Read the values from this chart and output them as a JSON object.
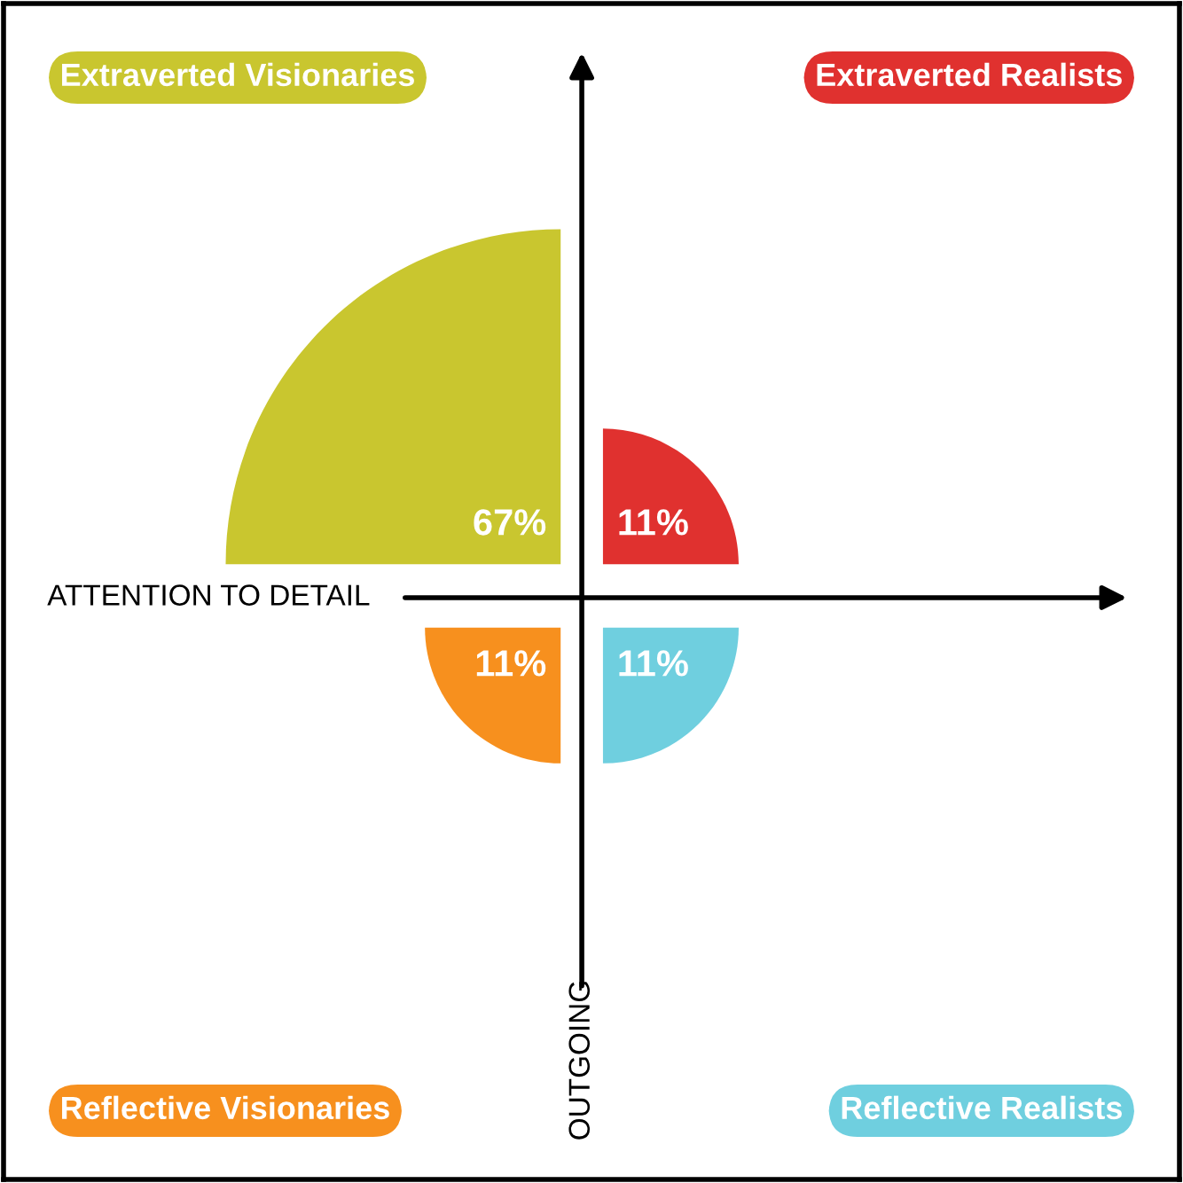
{
  "chart_data": {
    "type": "other",
    "xlabel": "ATTENTION TO DETAIL",
    "ylabel": "OUTGOING",
    "categories": [
      "Extraverted Visionaries",
      "Extraverted Realists",
      "Reflective Visionaries",
      "Reflective Realists"
    ],
    "values": [
      67,
      11,
      11,
      11
    ],
    "value_labels": [
      "67%",
      "11%",
      "11%",
      "11%"
    ],
    "colors": [
      "#c9c62f",
      "#e0312f",
      "#f7901e",
      "#6fcfdf"
    ]
  }
}
